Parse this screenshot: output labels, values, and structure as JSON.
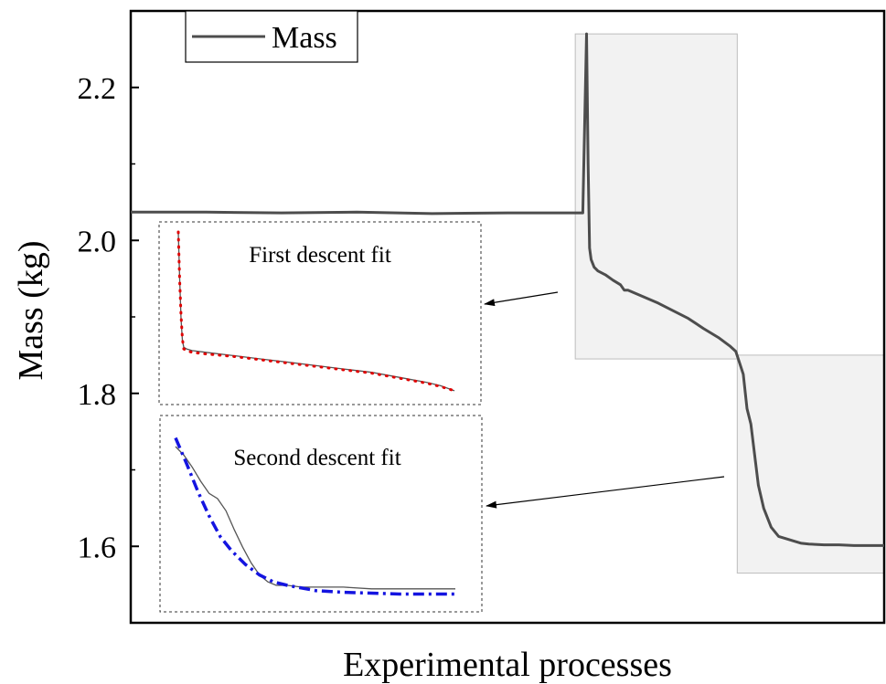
{
  "chart_data": {
    "type": "line",
    "title": "",
    "xlabel": "Experimental processes",
    "ylabel": "Mass (kg)",
    "ylim": [
      1.5,
      2.3
    ],
    "yticks": [
      {
        "value": 1.6,
        "label": "1.6"
      },
      {
        "value": 1.8,
        "label": "1.8"
      },
      {
        "value": 2.0,
        "label": "2.0"
      },
      {
        "value": 2.2,
        "label": "2.2"
      }
    ],
    "xlim": [
      0,
      100
    ],
    "grid": false,
    "legend": {
      "placement": "top-left",
      "entries": [
        "Mass"
      ]
    },
    "colors": {
      "mass": "#4d4d4d",
      "fit1": "#e00000",
      "fit2": "#1414e0",
      "highlight": "#f2f2f2"
    },
    "series": [
      {
        "name": "Mass",
        "x": [
          0,
          10,
          20,
          30,
          40,
          50,
          56,
          60,
          60.5,
          60.7,
          60.9,
          61.1,
          61.5,
          62,
          63,
          64,
          65,
          65.5,
          66,
          70,
          74,
          76,
          78,
          79.5,
          80.3,
          80.8,
          81.3,
          81.8,
          82.3,
          82.8,
          83.3,
          84,
          85,
          86,
          87,
          88,
          89,
          90,
          92,
          94,
          96,
          98,
          100
        ],
        "y": [
          2.037,
          2.037,
          2.036,
          2.037,
          2.035,
          2.036,
          2.036,
          2.036,
          2.27,
          2.1,
          1.99,
          1.975,
          1.965,
          1.96,
          1.955,
          1.948,
          1.942,
          1.935,
          1.935,
          1.918,
          1.898,
          1.885,
          1.873,
          1.862,
          1.855,
          1.84,
          1.825,
          1.78,
          1.76,
          1.72,
          1.68,
          1.65,
          1.625,
          1.613,
          1.61,
          1.607,
          1.604,
          1.603,
          1.602,
          1.602,
          1.601,
          1.601,
          1.601
        ]
      }
    ],
    "highlights": [
      {
        "x": [
          59,
          80.5
        ],
        "y": [
          1.845,
          2.27
        ]
      },
      {
        "x": [
          80.5,
          100
        ],
        "y": [
          1.565,
          1.85
        ]
      }
    ],
    "insets": [
      {
        "title": "First descent fit",
        "measured": {
          "x": [
            0,
            0.5,
            1,
            1.5,
            2,
            3,
            5,
            10,
            20,
            30,
            40,
            50,
            60,
            70,
            80,
            90,
            95,
            100
          ],
          "y": [
            1.0,
            0.72,
            0.48,
            0.35,
            0.31,
            0.3,
            0.29,
            0.28,
            0.26,
            0.24,
            0.22,
            0.2,
            0.18,
            0.16,
            0.13,
            0.1,
            0.08,
            0.05
          ]
        },
        "fit": {
          "x": [
            0,
            0.5,
            1,
            1.5,
            2,
            3,
            5,
            10,
            20,
            30,
            40,
            50,
            60,
            70,
            80,
            90,
            95,
            100
          ],
          "y": [
            1.0,
            0.71,
            0.5,
            0.36,
            0.3,
            0.29,
            0.28,
            0.27,
            0.255,
            0.235,
            0.215,
            0.195,
            0.175,
            0.155,
            0.125,
            0.095,
            0.075,
            0.05
          ]
        }
      },
      {
        "title": "Second descent fit",
        "measured": {
          "x": [
            0,
            3,
            6,
            9,
            12,
            15,
            18,
            21,
            24,
            27,
            30,
            33,
            36,
            40,
            45,
            50,
            60,
            70,
            80,
            90,
            100
          ],
          "y": [
            0.9,
            0.85,
            0.78,
            0.7,
            0.63,
            0.6,
            0.53,
            0.42,
            0.32,
            0.23,
            0.16,
            0.12,
            0.1,
            0.1,
            0.09,
            0.09,
            0.09,
            0.08,
            0.08,
            0.08,
            0.08
          ]
        },
        "fit": {
          "x": [
            0,
            4,
            8,
            12,
            16,
            20,
            25,
            30,
            35,
            40,
            50,
            60,
            70,
            80,
            90,
            100
          ],
          "y": [
            0.95,
            0.8,
            0.64,
            0.5,
            0.38,
            0.3,
            0.22,
            0.16,
            0.12,
            0.1,
            0.07,
            0.06,
            0.055,
            0.05,
            0.05,
            0.05
          ]
        }
      }
    ]
  }
}
